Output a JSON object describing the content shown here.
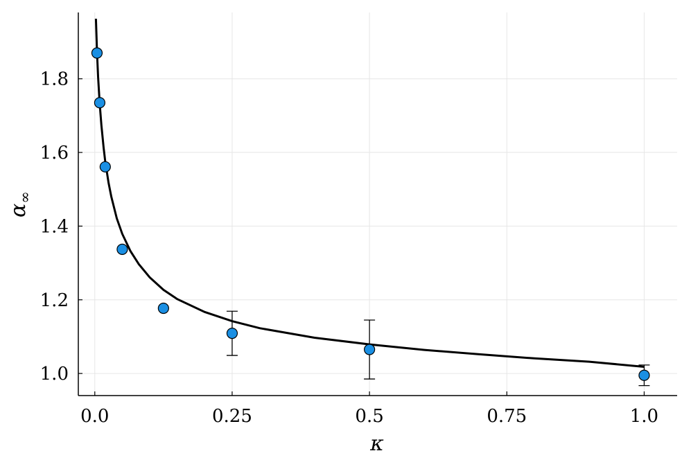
{
  "chart_data": {
    "type": "scatter",
    "xlabel": "κ",
    "ylabel_main": "α",
    "ylabel_sub": "∞",
    "xlim": [
      -0.03,
      1.06
    ],
    "ylim": [
      0.94,
      1.98
    ],
    "grid": true,
    "legend": "none",
    "x_ticks": [
      0.0,
      0.25,
      0.5,
      0.75,
      1.0
    ],
    "x_tick_labels": [
      "0.0",
      "0.25",
      "0.5",
      "0.75",
      "1.0"
    ],
    "y_ticks": [
      1.0,
      1.2,
      1.4,
      1.6,
      1.8
    ],
    "y_tick_labels": [
      "1.0",
      "1.2",
      "1.4",
      "1.6",
      "1.8"
    ],
    "series": [
      {
        "kind": "points",
        "color": "#1a8fe3",
        "points": [
          {
            "x": 0.004,
            "y": 1.87,
            "err": 0.0
          },
          {
            "x": 0.009,
            "y": 1.735,
            "err": 0.0
          },
          {
            "x": 0.019,
            "y": 1.561,
            "err": 0.0
          },
          {
            "x": 0.05,
            "y": 1.337,
            "err": 0.0
          },
          {
            "x": 0.125,
            "y": 1.177,
            "err": 0.0
          },
          {
            "x": 0.25,
            "y": 1.109,
            "err": 0.06
          },
          {
            "x": 0.5,
            "y": 1.065,
            "err": 0.08
          },
          {
            "x": 1.0,
            "y": 0.995,
            "err": 0.028
          }
        ]
      },
      {
        "kind": "line",
        "color": "#000000",
        "x": [
          0.002,
          0.004,
          0.006,
          0.009,
          0.012,
          0.016,
          0.019,
          0.025,
          0.03,
          0.04,
          0.05,
          0.065,
          0.08,
          0.1,
          0.125,
          0.15,
          0.2,
          0.25,
          0.3,
          0.4,
          0.5,
          0.6,
          0.7,
          0.8,
          0.9,
          1.0
        ],
        "y": [
          1.963,
          1.871,
          1.806,
          1.731,
          1.674,
          1.613,
          1.576,
          1.518,
          1.48,
          1.421,
          1.379,
          1.332,
          1.297,
          1.261,
          1.227,
          1.202,
          1.167,
          1.142,
          1.123,
          1.097,
          1.079,
          1.064,
          1.052,
          1.041,
          1.032,
          1.018
        ]
      }
    ]
  }
}
